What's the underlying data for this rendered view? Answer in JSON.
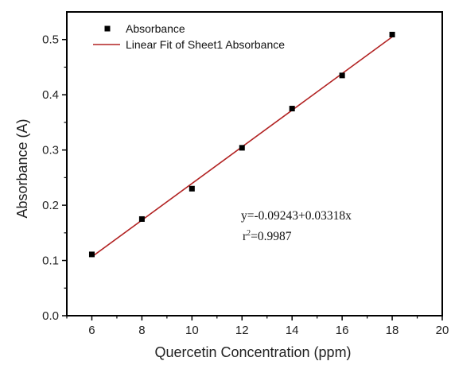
{
  "chart_data": {
    "type": "scatter",
    "xlabel": "Quercetin Concentration (ppm)",
    "ylabel": "Absorbance (A)",
    "xlim": [
      5,
      20
    ],
    "ylim": [
      0.0,
      0.55
    ],
    "x_ticks": [
      6,
      8,
      10,
      12,
      14,
      16,
      18,
      20
    ],
    "y_ticks": [
      0.0,
      0.1,
      0.2,
      0.3,
      0.4,
      0.5
    ],
    "x_tick_labels": [
      "6",
      "8",
      "10",
      "12",
      "14",
      "16",
      "18",
      "20"
    ],
    "y_tick_labels": [
      "0.0",
      "0.1",
      "0.2",
      "0.3",
      "0.4",
      "0.5"
    ],
    "grid": false,
    "legend_position": "top-left",
    "series": [
      {
        "name": "Absorbance",
        "kind": "scatter",
        "marker": "square",
        "color": "#000000",
        "x": [
          6,
          8,
          10,
          12,
          14,
          16,
          18
        ],
        "y": [
          0.111,
          0.175,
          0.23,
          0.304,
          0.375,
          0.435,
          0.509
        ]
      },
      {
        "name": "Linear Fit of Sheet1 Absorbance",
        "kind": "line",
        "color": "#b22222",
        "intercept": -0.09243,
        "slope": 0.03318,
        "x_range": [
          6,
          18
        ]
      }
    ],
    "annotations": {
      "equation": "y=-0.09243+0.03318x",
      "r2_base": "r",
      "r2_sup": "2",
      "r2_value": "=0.9987"
    }
  }
}
